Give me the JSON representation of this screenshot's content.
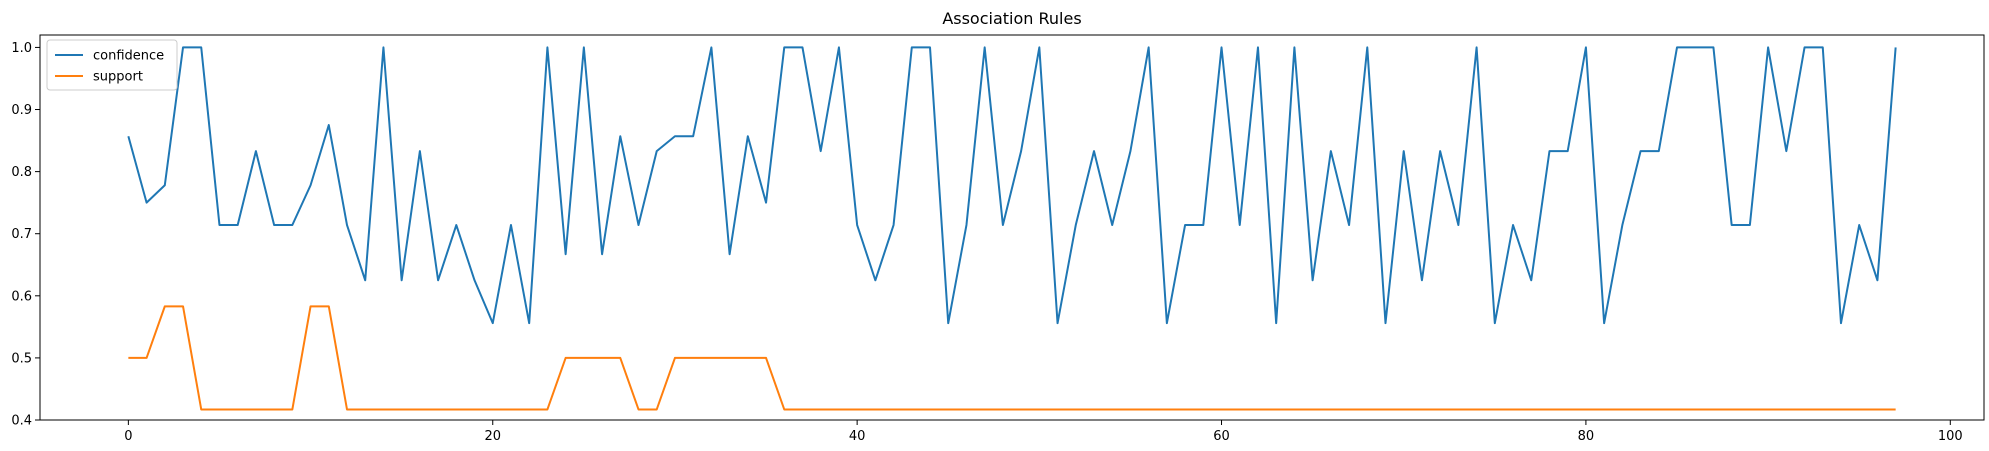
{
  "chart_data": {
    "type": "line",
    "title": "Association Rules",
    "xlabel": "",
    "ylabel": "",
    "xlim": [
      -4.85,
      101.85
    ],
    "ylim": [
      0.4,
      1.02
    ],
    "xticks": [
      0,
      20,
      40,
      60,
      80,
      100
    ],
    "xtick_labels": [
      "0",
      "20",
      "40",
      "60",
      "80",
      "100"
    ],
    "yticks": [
      0.4,
      0.5,
      0.6,
      0.7,
      0.8,
      0.9,
      1.0
    ],
    "ytick_labels": [
      "0.4",
      "0.5",
      "0.6",
      "0.7",
      "0.8",
      "0.9",
      "1.0"
    ],
    "grid": false,
    "legend_position": "top-left",
    "series": [
      {
        "name": "confidence",
        "color": "#1f77b4",
        "values": [
          0.857,
          0.75,
          0.778,
          1.0,
          1.0,
          0.714,
          0.714,
          0.833,
          0.714,
          0.714,
          0.778,
          0.875,
          0.714,
          0.625,
          1.0,
          0.625,
          0.833,
          0.625,
          0.714,
          0.625,
          0.556,
          0.714,
          0.556,
          1.0,
          0.667,
          1.0,
          0.667,
          0.857,
          0.714,
          0.833,
          0.857,
          0.857,
          1.0,
          0.667,
          0.857,
          0.75,
          1.0,
          1.0,
          0.833,
          1.0,
          0.714,
          0.625,
          0.714,
          1.0,
          1.0,
          0.556,
          0.714,
          1.0,
          0.714,
          0.833,
          1.0,
          0.556,
          0.714,
          0.833,
          0.714,
          0.833,
          1.0,
          0.556,
          0.714,
          0.714,
          1.0,
          0.714,
          1.0,
          0.556,
          1.0,
          0.625,
          0.833,
          0.714,
          1.0,
          0.556,
          0.833,
          0.625,
          0.833,
          0.714,
          1.0,
          0.556,
          0.714,
          0.625,
          0.833,
          0.833,
          1.0,
          0.556,
          0.714,
          0.833,
          0.833,
          1.0,
          1.0,
          1.0,
          0.714,
          0.714,
          1.0,
          0.833,
          1.0,
          1.0,
          0.556,
          0.714,
          0.625,
          1.0
        ]
      },
      {
        "name": "support",
        "color": "#ff7f0e",
        "values": [
          0.5,
          0.5,
          0.583,
          0.583,
          0.417,
          0.417,
          0.417,
          0.417,
          0.417,
          0.417,
          0.583,
          0.583,
          0.417,
          0.417,
          0.417,
          0.417,
          0.417,
          0.417,
          0.417,
          0.417,
          0.417,
          0.417,
          0.417,
          0.417,
          0.5,
          0.5,
          0.5,
          0.5,
          0.417,
          0.417,
          0.5,
          0.5,
          0.5,
          0.5,
          0.5,
          0.5,
          0.417,
          0.417,
          0.417,
          0.417,
          0.417,
          0.417,
          0.417,
          0.417,
          0.417,
          0.417,
          0.417,
          0.417,
          0.417,
          0.417,
          0.417,
          0.417,
          0.417,
          0.417,
          0.417,
          0.417,
          0.417,
          0.417,
          0.417,
          0.417,
          0.417,
          0.417,
          0.417,
          0.417,
          0.417,
          0.417,
          0.417,
          0.417,
          0.417,
          0.417,
          0.417,
          0.417,
          0.417,
          0.417,
          0.417,
          0.417,
          0.417,
          0.417,
          0.417,
          0.417,
          0.417,
          0.417,
          0.417,
          0.417,
          0.417,
          0.417,
          0.417,
          0.417,
          0.417,
          0.417,
          0.417,
          0.417,
          0.417,
          0.417,
          0.417,
          0.417,
          0.417,
          0.417
        ]
      }
    ]
  }
}
